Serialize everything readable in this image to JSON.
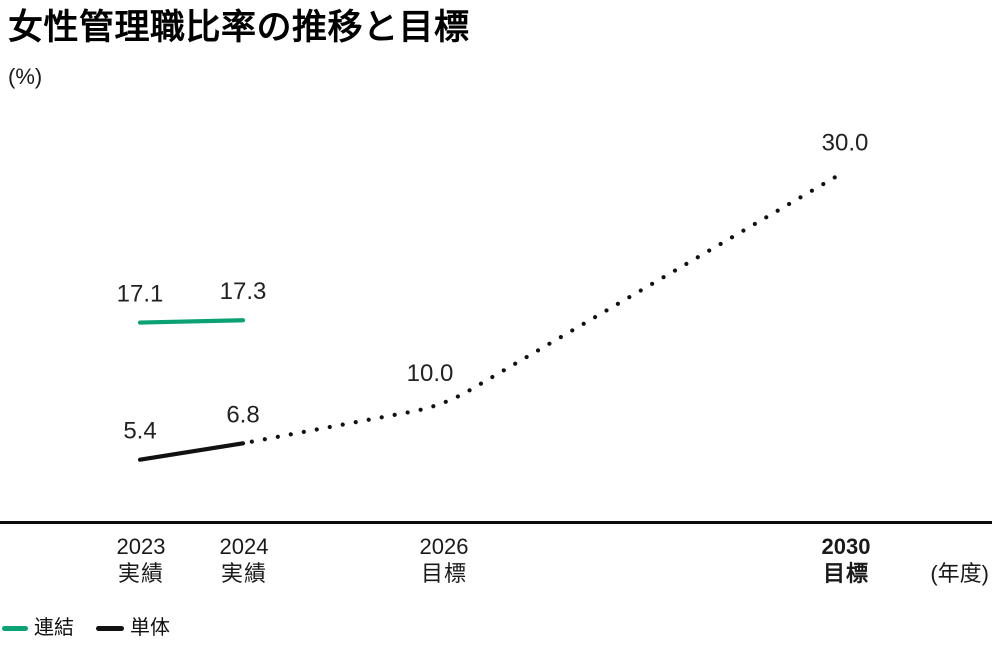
{
  "page": {
    "title": "女性管理職比率の推移と目標",
    "y_unit_label": "(%)",
    "x_unit_label": "(年度)"
  },
  "chart_data": {
    "type": "line",
    "title": "女性管理職比率の推移と目標",
    "ylabel": "(%)",
    "xlabel": "(年度)",
    "grid": false,
    "y_axis_hidden": true,
    "ylim": [
      0,
      44
    ],
    "x_categories": [
      {
        "year": 2023,
        "label": "2023",
        "sublabel": "実績",
        "emphasis": false
      },
      {
        "year": 2024,
        "label": "2024",
        "sublabel": "実績",
        "emphasis": false
      },
      {
        "year": 2026,
        "label": "2026",
        "sublabel": "目標",
        "emphasis": false
      },
      {
        "year": 2030,
        "label": "2030",
        "sublabel": "目標",
        "emphasis": true
      }
    ],
    "series": [
      {
        "name": "連結",
        "color": "#0AA173",
        "line_style": "solid",
        "points": [
          {
            "year": 2023,
            "value": 17.1
          },
          {
            "year": 2024,
            "value": 17.3
          }
        ]
      },
      {
        "name": "単体",
        "color": "#111111",
        "line_style": "solid_then_dotted",
        "dotted_from_year": 2024,
        "points": [
          {
            "year": 2023,
            "value": 5.4
          },
          {
            "year": 2024,
            "value": 6.8
          },
          {
            "year": 2026,
            "value": 10.0,
            "dx": -13,
            "dy": -4
          },
          {
            "year": 2030,
            "value": 30.0
          }
        ]
      }
    ],
    "value_label_decimals": 1,
    "legend": [
      {
        "label": "連結",
        "color": "#0AA173",
        "swatch_width": 26
      },
      {
        "label": "単体",
        "color": "#111111",
        "swatch_width": 28
      }
    ],
    "legend_position": "bottom-left"
  }
}
